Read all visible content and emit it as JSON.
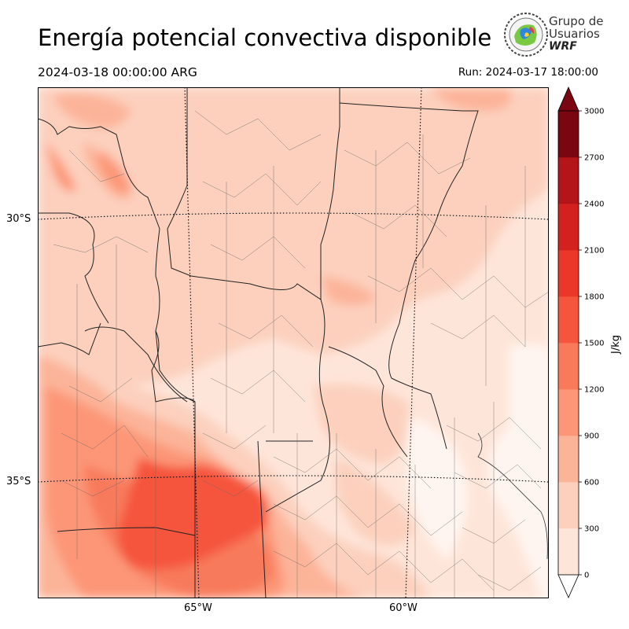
{
  "header": {
    "title": "Energía potencial convectiva disponible",
    "valid_time": "2024-03-18 00:00:00 ARG",
    "run_time": "Run: 2024-03-17 18:00:00"
  },
  "logo": {
    "line1": "Grupo de",
    "line2": "Usuarios",
    "line3": "WRF"
  },
  "map": {
    "lat_labels": [
      "30°S",
      "35°S"
    ],
    "lon_labels": [
      "65°W",
      "60°W"
    ]
  },
  "colorbar": {
    "unit_label": "J/kg",
    "ticks": [
      "0",
      "300",
      "600",
      "900",
      "1200",
      "1500",
      "1800",
      "2100",
      "2400",
      "2700",
      "3000"
    ],
    "colors": [
      "#fee5d9",
      "#fcd0bd",
      "#fcb499",
      "#fc9677",
      "#f87a5b",
      "#f5553d",
      "#ea372a",
      "#d2211f",
      "#b31519",
      "#7a0612"
    ]
  }
}
